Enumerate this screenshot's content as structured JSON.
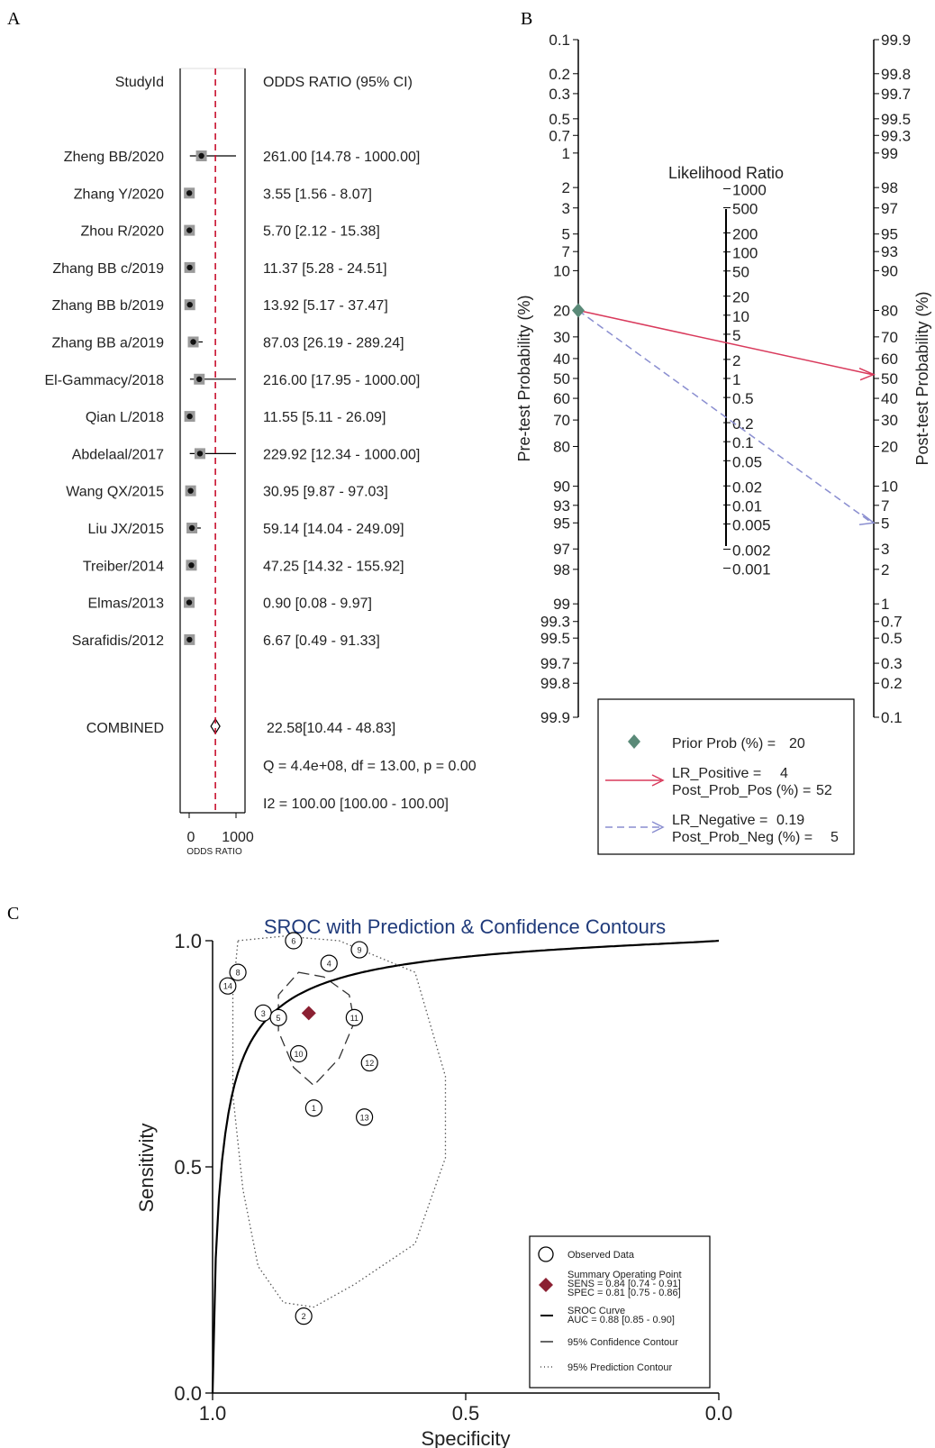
{
  "panels": {
    "a": "A",
    "b": "B",
    "c": "C"
  },
  "chart_data": [
    {
      "type": "forest",
      "panel": "A",
      "header_study": "StudyId",
      "header_effect": "ODDS RATIO (95% CI)",
      "xlabel": "ODDS RATIO",
      "xticks": [
        "0",
        "1000"
      ],
      "xlim": [
        0,
        1000
      ],
      "combined_line": 560,
      "studies": [
        {
          "label": "Zheng BB/2020",
          "text": "261.00 [14.78 - 1000.00]",
          "est": 261.0,
          "lo": 14.78,
          "hi": 1000.0
        },
        {
          "label": "Zhang Y/2020",
          "text": "3.55 [1.56 - 8.07]",
          "est": 3.55,
          "lo": 1.56,
          "hi": 8.07
        },
        {
          "label": "Zhou R/2020",
          "text": "5.70 [2.12 - 15.38]",
          "est": 5.7,
          "lo": 2.12,
          "hi": 15.38
        },
        {
          "label": "Zhang BB c/2019",
          "text": "11.37 [5.28 - 24.51]",
          "est": 11.37,
          "lo": 5.28,
          "hi": 24.51
        },
        {
          "label": "Zhang BB b/2019",
          "text": "13.92 [5.17 - 37.47]",
          "est": 13.92,
          "lo": 5.17,
          "hi": 37.47
        },
        {
          "label": "Zhang BB a/2019",
          "text": "87.03 [26.19 - 289.24]",
          "est": 87.03,
          "lo": 26.19,
          "hi": 289.24
        },
        {
          "label": "El-Gammacy/2018",
          "text": "216.00 [17.95 - 1000.00]",
          "est": 216.0,
          "lo": 17.95,
          "hi": 1000.0
        },
        {
          "label": "Qian L/2018",
          "text": "11.55 [5.11 - 26.09]",
          "est": 11.55,
          "lo": 5.11,
          "hi": 26.09
        },
        {
          "label": "Abdelaal/2017",
          "text": "229.92 [12.34 - 1000.00]",
          "est": 229.92,
          "lo": 12.34,
          "hi": 1000.0
        },
        {
          "label": "Wang QX/2015",
          "text": "30.95 [9.87 - 97.03]",
          "est": 30.95,
          "lo": 9.87,
          "hi": 97.03
        },
        {
          "label": "Liu JX/2015",
          "text": "59.14 [14.04 - 249.09]",
          "est": 59.14,
          "lo": 14.04,
          "hi": 249.09
        },
        {
          "label": "Treiber/2014",
          "text": "47.25 [14.32 - 155.92]",
          "est": 47.25,
          "lo": 14.32,
          "hi": 155.92
        },
        {
          "label": "Elmas/2013",
          "text": "0.90 [0.08 - 9.97]",
          "est": 0.9,
          "lo": 0.08,
          "hi": 9.97
        },
        {
          "label": "Sarafidis/2012",
          "text": "6.67 [0.49 - 91.33]",
          "est": 6.67,
          "lo": 0.49,
          "hi": 91.33
        }
      ],
      "combined": {
        "label": "COMBINED",
        "text": "22.58[10.44 - 48.83]"
      },
      "heterogeneity_q": "Q = 4.4e+08, df = 13.00, p =  0.00",
      "heterogeneity_i2": "I2 = 100.00 [100.00 - 100.00]"
    },
    {
      "type": "fagan_nomogram",
      "panel": "B",
      "left_axis_label": "Pre-test Probability (%)",
      "right_axis_label": "Post-test Probability (%)",
      "middle_axis_label": "Likelihood Ratio",
      "left_ticks": [
        "0.1",
        "0.2",
        "0.3",
        "0.5",
        "0.7",
        "1",
        "2",
        "3",
        "5",
        "7",
        "10",
        "20",
        "30",
        "40",
        "50",
        "60",
        "70",
        "80",
        "90",
        "93",
        "95",
        "97",
        "98",
        "99",
        "99.3",
        "99.5",
        "99.7",
        "99.8",
        "99.9"
      ],
      "right_ticks": [
        "99.9",
        "99.8",
        "99.7",
        "99.5",
        "99.3",
        "99",
        "98",
        "97",
        "95",
        "93",
        "90",
        "80",
        "70",
        "60",
        "50",
        "40",
        "30",
        "20",
        "10",
        "7",
        "5",
        "3",
        "2",
        "1",
        "0.7",
        "0.5",
        "0.3",
        "0.2",
        "0.1"
      ],
      "lr_ticks": [
        "1000",
        "500",
        "200",
        "100",
        "50",
        "20",
        "10",
        "5",
        "2",
        "1",
        "0.5",
        "0.2",
        "0.1",
        "0.05",
        "0.02",
        "0.01",
        "0.005",
        "0.002",
        "0.001"
      ],
      "prior_prob": 20,
      "lr_positive": 4,
      "post_prob_pos": 52,
      "lr_negative": 0.19,
      "post_prob_neg": 5,
      "legend": {
        "prior": "Prior Prob (%) =",
        "prior_value": "20",
        "lr_pos": "LR_Positive =",
        "lr_pos_value": "4",
        "post_pos": "Post_Prob_Pos (%) =",
        "post_pos_value": "52",
        "lr_neg": "LR_Negative =",
        "lr_neg_value": "0.19",
        "post_neg": "Post_Prob_Neg (%) =",
        "post_neg_value": "5"
      },
      "colors": {
        "prior": "#5a8a78",
        "positive": "#d93a5c",
        "negative": "#8a8ed0"
      }
    },
    {
      "type": "sroc",
      "panel": "C",
      "title": "SROC with Prediction & Confidence Contours",
      "xlabel": "Specificity",
      "ylabel": "Sensitivity",
      "xticks": [
        "1.0",
        "0.5",
        "0.0"
      ],
      "yticks": [
        "1.0",
        "0.5",
        "0.0"
      ],
      "xlim": [
        1.0,
        0.0
      ],
      "ylim": [
        0.0,
        1.0
      ],
      "points": [
        {
          "id": "1",
          "spec": 0.8,
          "sens": 0.63
        },
        {
          "id": "2",
          "spec": 0.82,
          "sens": 0.17
        },
        {
          "id": "3",
          "spec": 0.9,
          "sens": 0.84
        },
        {
          "id": "4",
          "spec": 0.77,
          "sens": 0.95
        },
        {
          "id": "5",
          "spec": 0.87,
          "sens": 0.83
        },
        {
          "id": "6",
          "spec": 0.84,
          "sens": 1.0
        },
        {
          "id": "8",
          "spec": 0.95,
          "sens": 0.93
        },
        {
          "id": "9",
          "spec": 0.71,
          "sens": 0.98
        },
        {
          "id": "10",
          "spec": 0.83,
          "sens": 0.75
        },
        {
          "id": "11",
          "spec": 0.72,
          "sens": 0.83
        },
        {
          "id": "12",
          "spec": 0.69,
          "sens": 0.73
        },
        {
          "id": "13",
          "spec": 0.7,
          "sens": 0.61
        },
        {
          "id": "14",
          "spec": 0.97,
          "sens": 0.9
        }
      ],
      "summary_point": {
        "spec": 0.81,
        "sens": 0.84
      },
      "legend": [
        {
          "label": "Observed Data"
        },
        {
          "label": "Summary Operating Point",
          "l2": "SENS = 0.84 [0.74 - 0.91]",
          "l3": "SPEC = 0.81 [0.75 - 0.86]"
        },
        {
          "label": "SROC Curve",
          "l2": "AUC = 0.88 [0.85 - 0.90]"
        },
        {
          "label": "95% Confidence Contour"
        },
        {
          "label": "95% Prediction Contour"
        }
      ],
      "colors": {
        "title": "#1f3a7a",
        "summary": "#8b2032",
        "curve": "#000000",
        "contour": "#555555"
      }
    }
  ]
}
